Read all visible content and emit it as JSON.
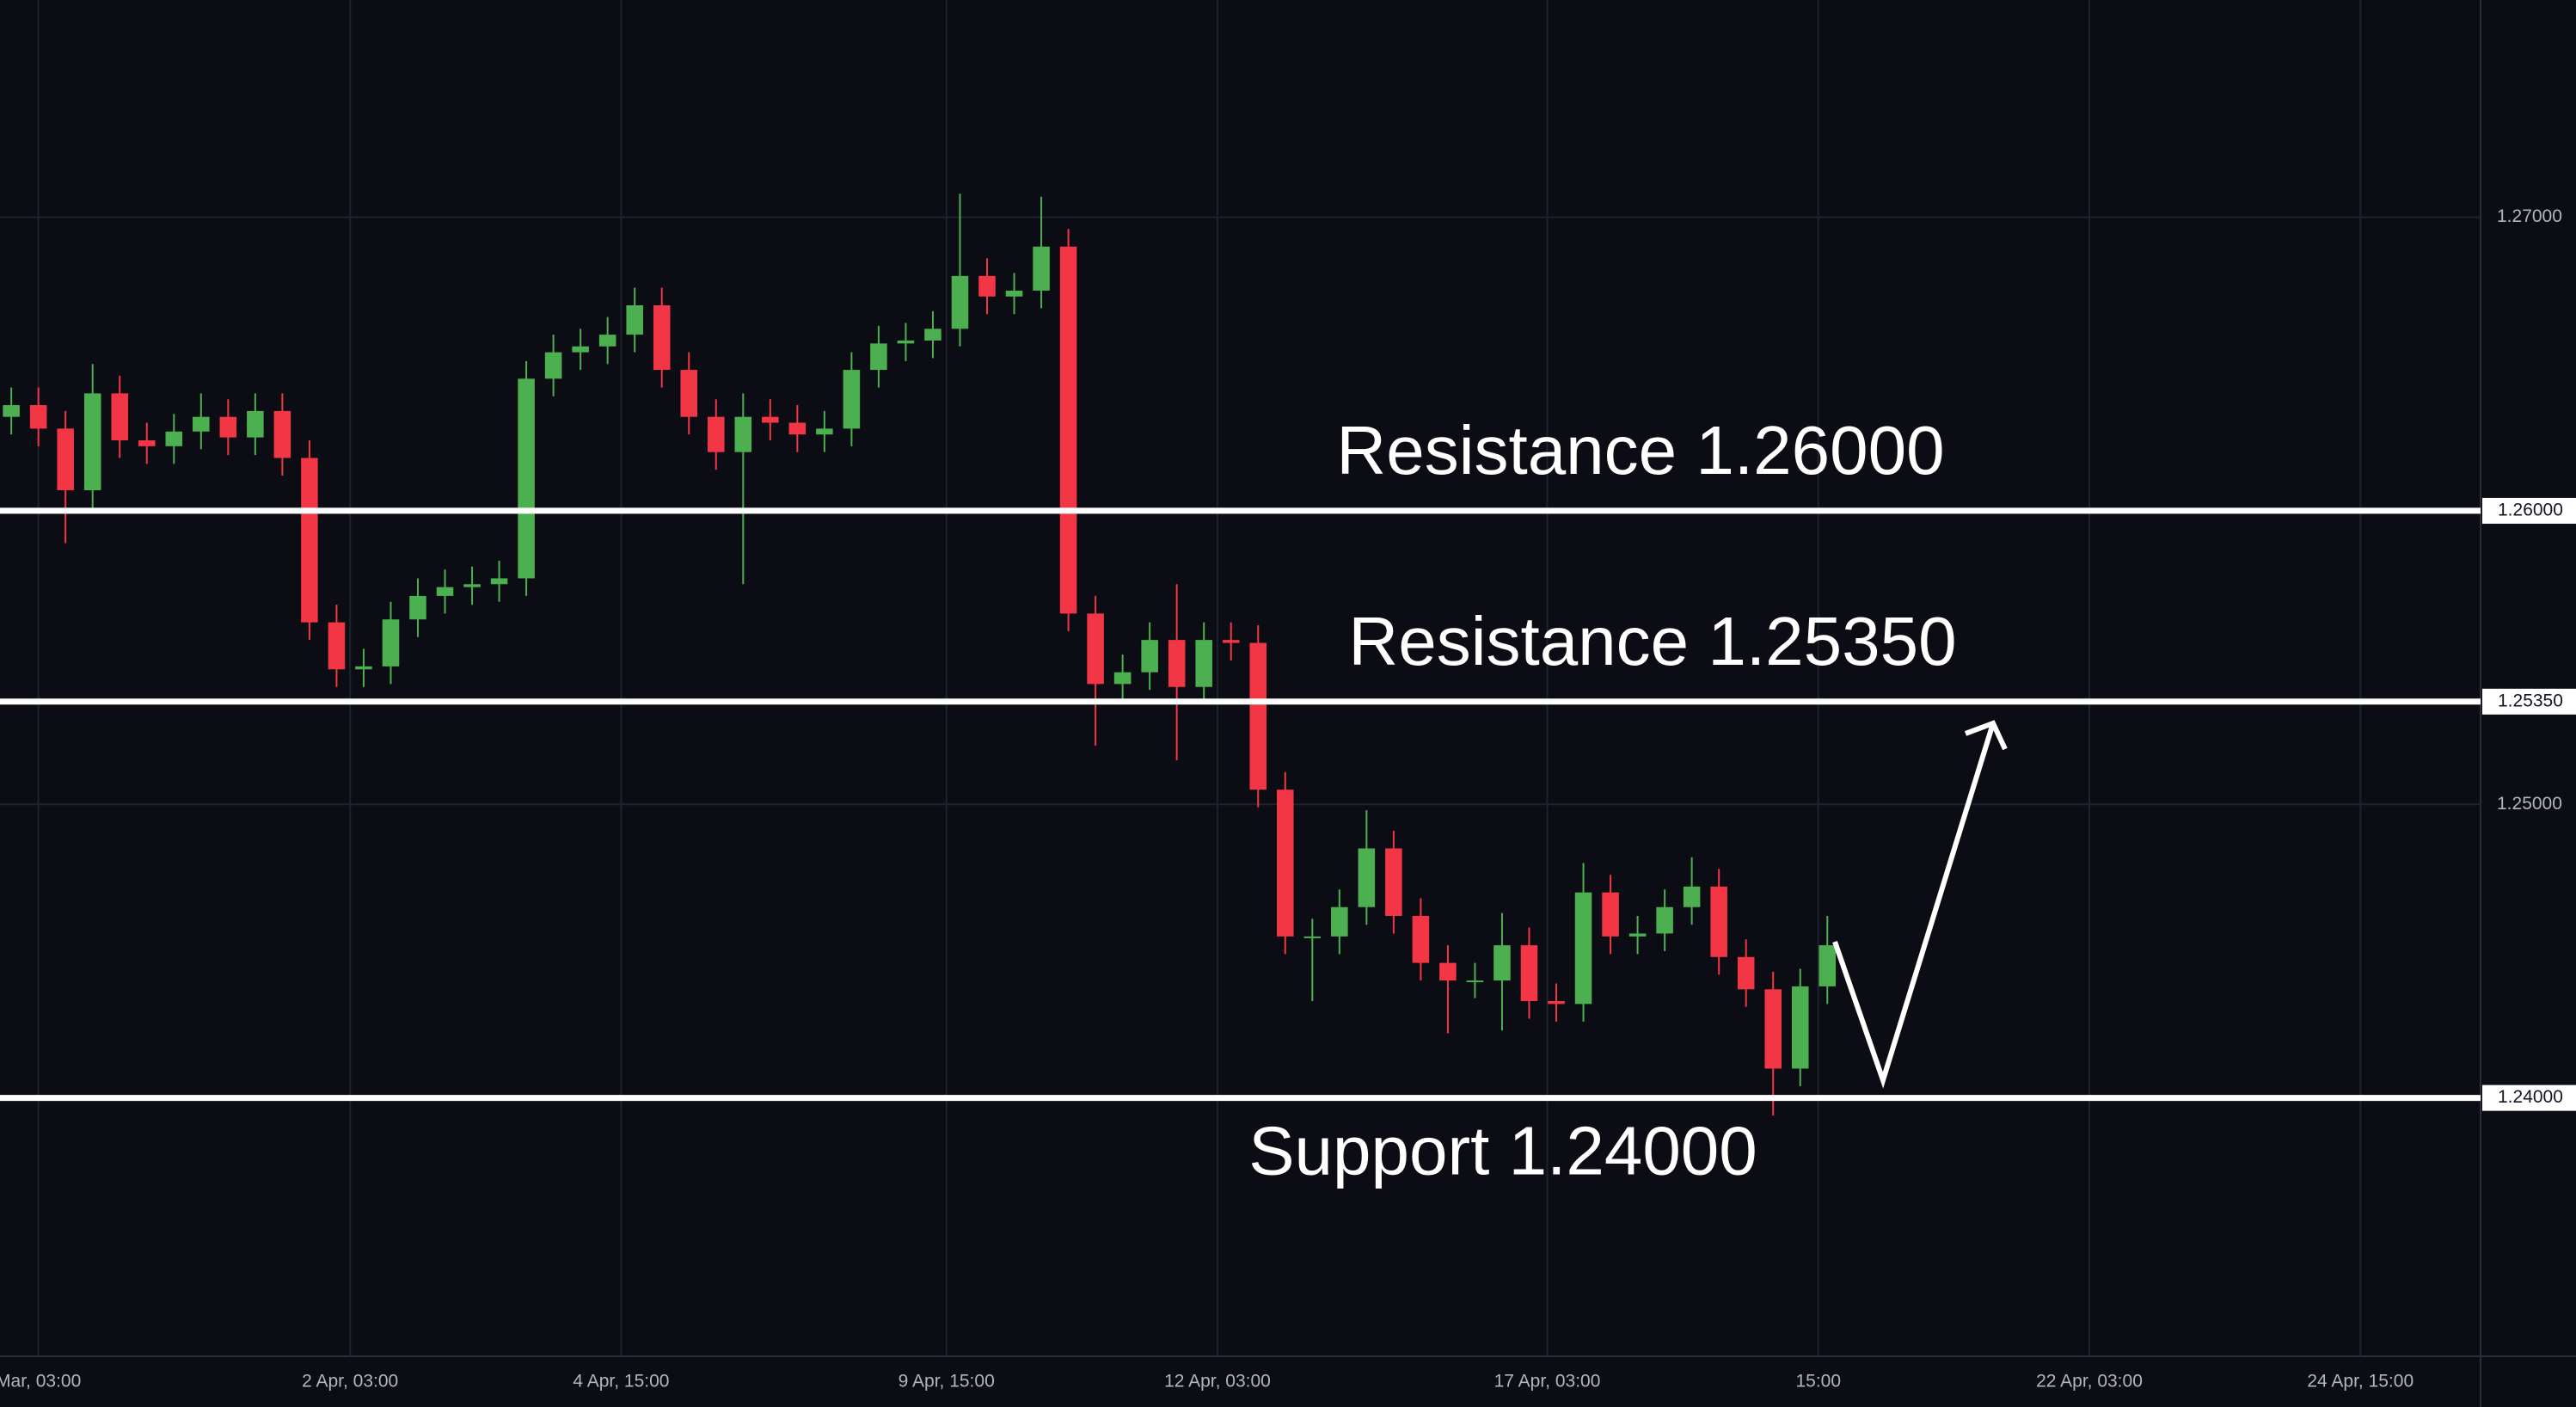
{
  "chart_data": {
    "type": "candlestick",
    "up_color": "#4caf50",
    "down_color": "#f23645",
    "grid": true,
    "xlim": [
      -77.5,
      471.6
    ],
    "ylim": [
      1.2312,
      1.2774
    ],
    "xticks": [
      {
        "value": -69,
        "label": "Mar, 03:00"
      },
      {
        "value": 0,
        "label": "2 Apr, 03:00"
      },
      {
        "value": 60,
        "label": "4 Apr, 15:00"
      },
      {
        "value": 132,
        "label": "9 Apr, 15:00"
      },
      {
        "value": 192,
        "label": "12 Apr, 03:00"
      },
      {
        "value": 265,
        "label": "17 Apr, 03:00"
      },
      {
        "value": 325,
        "label": "15:00"
      },
      {
        "value": 385,
        "label": "22 Apr, 03:00"
      },
      {
        "value": 445,
        "label": "24 Apr, 15:00"
      }
    ],
    "yticks": [
      {
        "value": 1.27,
        "label": "1.27000"
      },
      {
        "value": 1.25,
        "label": "1.25000"
      }
    ],
    "levels": [
      {
        "value": 1.26,
        "label": "1.26000",
        "text": "Resistance 1.26000"
      },
      {
        "value": 1.2535,
        "label": "1.25350",
        "text": "Resistance 1.25350"
      },
      {
        "value": 1.24,
        "label": "1.24000",
        "text": "Support 1.24000"
      }
    ],
    "x": [
      -75,
      -69,
      -63,
      -57,
      -51,
      -45,
      -39,
      -33,
      -27,
      -21,
      -15,
      -9,
      -3,
      3,
      9,
      15,
      21,
      27,
      33,
      39,
      45,
      51,
      57,
      63,
      69,
      75,
      81,
      87,
      93,
      99,
      105,
      111,
      117,
      123,
      129,
      135,
      141,
      147,
      153,
      159,
      165,
      171,
      177,
      183,
      189,
      195,
      201,
      207,
      213,
      219,
      225,
      231,
      237,
      243,
      249,
      255,
      261,
      267,
      273,
      279,
      285,
      291,
      297,
      303,
      309,
      315,
      321,
      327
    ],
    "open": [
      1.2632,
      1.2636,
      1.2628,
      1.2607,
      1.264,
      1.2624,
      1.2622,
      1.2627,
      1.2632,
      1.2625,
      1.2634,
      1.2618,
      1.2562,
      1.2546,
      1.2547,
      1.2563,
      1.2571,
      1.2574,
      1.2575,
      1.2577,
      1.2645,
      1.2654,
      1.2656,
      1.266,
      1.267,
      1.2648,
      1.2632,
      1.262,
      1.2632,
      1.263,
      1.2626,
      1.2628,
      1.2648,
      1.2657,
      1.2658,
      1.2662,
      1.268,
      1.2673,
      1.2675,
      1.269,
      1.2565,
      1.2541,
      1.2545,
      1.2556,
      1.254,
      1.2556,
      1.2555,
      1.2505,
      1.2455,
      1.2455,
      1.2465,
      1.2485,
      1.2462,
      1.2446,
      1.244,
      1.244,
      1.2452,
      1.2433,
      1.2432,
      1.247,
      1.2455,
      1.2456,
      1.2465,
      1.2472,
      1.2448,
      1.2437,
      1.241,
      1.2438
    ],
    "high": [
      1.2642,
      1.2642,
      1.2634,
      1.265,
      1.2646,
      1.263,
      1.2633,
      1.264,
      1.2638,
      1.264,
      1.264,
      1.2624,
      1.2568,
      1.2553,
      1.2569,
      1.2577,
      1.258,
      1.2581,
      1.2583,
      1.2651,
      1.266,
      1.2662,
      1.2666,
      1.2676,
      1.2676,
      1.2654,
      1.2638,
      1.264,
      1.2638,
      1.2636,
      1.2634,
      1.2654,
      1.2663,
      1.2664,
      1.2668,
      1.2708,
      1.2686,
      1.2681,
      1.2707,
      1.2696,
      1.2571,
      1.2551,
      1.2562,
      1.2575,
      1.2562,
      1.2562,
      1.2561,
      1.2511,
      1.2461,
      1.2471,
      1.2498,
      1.2491,
      1.2468,
      1.2452,
      1.2446,
      1.2463,
      1.2458,
      1.2439,
      1.248,
      1.2476,
      1.2462,
      1.2471,
      1.2482,
      1.2478,
      1.2454,
      1.2443,
      1.2444,
      1.2462
    ],
    "low": [
      1.2626,
      1.2622,
      1.2589,
      1.2601,
      1.2618,
      1.2616,
      1.2616,
      1.2621,
      1.2619,
      1.2619,
      1.2612,
      1.2556,
      1.254,
      1.254,
      1.2541,
      1.2557,
      1.2565,
      1.2568,
      1.2569,
      1.2571,
      1.2639,
      1.2648,
      1.265,
      1.2654,
      1.2642,
      1.2626,
      1.2614,
      1.2575,
      1.2624,
      1.262,
      1.262,
      1.2622,
      1.2642,
      1.2651,
      1.2652,
      1.2656,
      1.2667,
      1.2667,
      1.2669,
      1.2559,
      1.252,
      1.2535,
      1.2539,
      1.2515,
      1.2534,
      1.2549,
      1.2499,
      1.2449,
      1.2433,
      1.2449,
      1.2459,
      1.2456,
      1.244,
      1.2422,
      1.2434,
      1.2423,
      1.2427,
      1.2426,
      1.2426,
      1.2449,
      1.2449,
      1.245,
      1.2459,
      1.2442,
      1.2431,
      1.2394,
      1.2404,
      1.2432
    ],
    "close": [
      1.2636,
      1.2628,
      1.2607,
      1.264,
      1.2624,
      1.2622,
      1.2627,
      1.2632,
      1.2625,
      1.2634,
      1.2618,
      1.2562,
      1.2546,
      1.2547,
      1.2563,
      1.2571,
      1.2574,
      1.2575,
      1.2577,
      1.2645,
      1.2654,
      1.2656,
      1.266,
      1.267,
      1.2648,
      1.2632,
      1.262,
      1.2632,
      1.263,
      1.2626,
      1.2628,
      1.2648,
      1.2657,
      1.2658,
      1.2662,
      1.268,
      1.2673,
      1.2675,
      1.269,
      1.2565,
      1.2541,
      1.2545,
      1.2556,
      1.254,
      1.2556,
      1.2555,
      1.2505,
      1.2455,
      1.2455,
      1.2465,
      1.2485,
      1.2462,
      1.2446,
      1.244,
      1.244,
      1.2452,
      1.2433,
      1.2432,
      1.247,
      1.2455,
      1.2456,
      1.2465,
      1.2472,
      1.2448,
      1.2437,
      1.241,
      1.2438,
      1.2452
    ]
  }
}
